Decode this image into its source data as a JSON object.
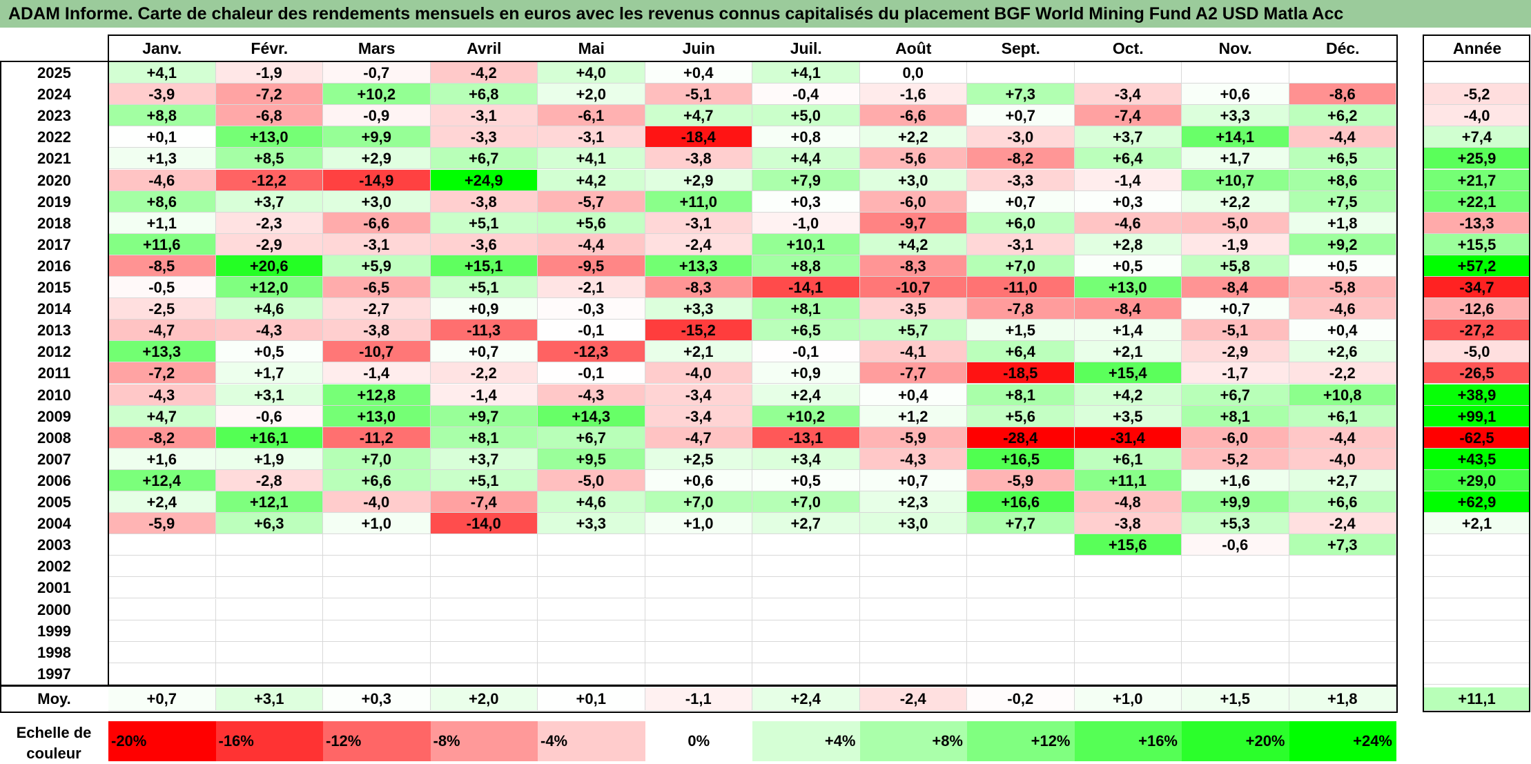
{
  "title": "ADAM Informe. Carte de chaleur des rendements mensuels en euros avec les revenus connus capitalisés du placement BGF World Mining Fund A2 USD Matla Acc",
  "chart_data": {
    "type": "heatmap",
    "months": [
      "Janv.",
      "Févr.",
      "Mars",
      "Avril",
      "Mai",
      "Juin",
      "Juil.",
      "Août",
      "Sept.",
      "Oct.",
      "Nov.",
      "Déc."
    ],
    "year_header": "Année",
    "avg_label": "Moy.",
    "rows": [
      {
        "year": "2025",
        "m": [
          "+4,1",
          "-1,9",
          "-0,7",
          "-4,2",
          "+4,0",
          "+0,4",
          "+4,1",
          "0,0",
          "",
          "",
          "",
          ""
        ],
        "y": ""
      },
      {
        "year": "2024",
        "m": [
          "-3,9",
          "-7,2",
          "+10,2",
          "+6,8",
          "+2,0",
          "-5,1",
          "-0,4",
          "-1,6",
          "+7,3",
          "-3,4",
          "+0,6",
          "-8,6"
        ],
        "y": "-5,2"
      },
      {
        "year": "2023",
        "m": [
          "+8,8",
          "-6,8",
          "-0,9",
          "-3,1",
          "-6,1",
          "+4,7",
          "+5,0",
          "-6,6",
          "+0,7",
          "-7,4",
          "+3,3",
          "+6,2"
        ],
        "y": "-4,0"
      },
      {
        "year": "2022",
        "m": [
          "+0,1",
          "+13,0",
          "+9,9",
          "-3,3",
          "-3,1",
          "-18,4",
          "+0,8",
          "+2,2",
          "-3,0",
          "+3,7",
          "+14,1",
          "-4,4"
        ],
        "y": "+7,4"
      },
      {
        "year": "2021",
        "m": [
          "+1,3",
          "+8,5",
          "+2,9",
          "+6,7",
          "+4,1",
          "-3,8",
          "+4,4",
          "-5,6",
          "-8,2",
          "+6,4",
          "+1,7",
          "+6,5"
        ],
        "y": "+25,9"
      },
      {
        "year": "2020",
        "m": [
          "-4,6",
          "-12,2",
          "-14,9",
          "+24,9",
          "+4,2",
          "+2,9",
          "+7,9",
          "+3,0",
          "-3,3",
          "-1,4",
          "+10,7",
          "+8,6"
        ],
        "y": "+21,7"
      },
      {
        "year": "2019",
        "m": [
          "+8,6",
          "+3,7",
          "+3,0",
          "-3,8",
          "-5,7",
          "+11,0",
          "+0,3",
          "-6,0",
          "+0,7",
          "+0,3",
          "+2,2",
          "+7,5"
        ],
        "y": "+22,1"
      },
      {
        "year": "2018",
        "m": [
          "+1,1",
          "-2,3",
          "-6,6",
          "+5,1",
          "+5,6",
          "-3,1",
          "-1,0",
          "-9,7",
          "+6,0",
          "-4,6",
          "-5,0",
          "+1,8"
        ],
        "y": "-13,3"
      },
      {
        "year": "2017",
        "m": [
          "+11,6",
          "-2,9",
          "-3,1",
          "-3,6",
          "-4,4",
          "-2,4",
          "+10,1",
          "+4,2",
          "-3,1",
          "+2,8",
          "-1,9",
          "+9,2"
        ],
        "y": "+15,5"
      },
      {
        "year": "2016",
        "m": [
          "-8,5",
          "+20,6",
          "+5,9",
          "+15,1",
          "-9,5",
          "+13,3",
          "+8,8",
          "-8,3",
          "+7,0",
          "+0,5",
          "+5,8",
          "+0,5"
        ],
        "y": "+57,2"
      },
      {
        "year": "2015",
        "m": [
          "-0,5",
          "+12,0",
          "-6,5",
          "+5,1",
          "-2,1",
          "-8,3",
          "-14,1",
          "-10,7",
          "-11,0",
          "+13,0",
          "-8,4",
          "-5,8"
        ],
        "y": "-34,7"
      },
      {
        "year": "2014",
        "m": [
          "-2,5",
          "+4,6",
          "-2,7",
          "+0,9",
          "-0,3",
          "+3,3",
          "+8,1",
          "-3,5",
          "-7,8",
          "-8,4",
          "+0,7",
          "-4,6"
        ],
        "y": "-12,6"
      },
      {
        "year": "2013",
        "m": [
          "-4,7",
          "-4,3",
          "-3,8",
          "-11,3",
          "-0,1",
          "-15,2",
          "+6,5",
          "+5,7",
          "+1,5",
          "+1,4",
          "-5,1",
          "+0,4"
        ],
        "y": "-27,2"
      },
      {
        "year": "2012",
        "m": [
          "+13,3",
          "+0,5",
          "-10,7",
          "+0,7",
          "-12,3",
          "+2,1",
          "-0,1",
          "-4,1",
          "+6,4",
          "+2,1",
          "-2,9",
          "+2,6"
        ],
        "y": "-5,0"
      },
      {
        "year": "2011",
        "m": [
          "-7,2",
          "+1,7",
          "-1,4",
          "-2,2",
          "-0,1",
          "-4,0",
          "+0,9",
          "-7,7",
          "-18,5",
          "+15,4",
          "-1,7",
          "-2,2"
        ],
        "y": "-26,5"
      },
      {
        "year": "2010",
        "m": [
          "-4,3",
          "+3,1",
          "+12,8",
          "-1,4",
          "-4,3",
          "-3,4",
          "+2,4",
          "+0,4",
          "+8,1",
          "+4,2",
          "+6,7",
          "+10,8"
        ],
        "y": "+38,9"
      },
      {
        "year": "2009",
        "m": [
          "+4,7",
          "-0,6",
          "+13,0",
          "+9,7",
          "+14,3",
          "-3,4",
          "+10,2",
          "+1,2",
          "+5,6",
          "+3,5",
          "+8,1",
          "+6,1"
        ],
        "y": "+99,1"
      },
      {
        "year": "2008",
        "m": [
          "-8,2",
          "+16,1",
          "-11,2",
          "+8,1",
          "+6,7",
          "-4,7",
          "-13,1",
          "-5,9",
          "-28,4",
          "-31,4",
          "-6,0",
          "-4,4"
        ],
        "y": "-62,5"
      },
      {
        "year": "2007",
        "m": [
          "+1,6",
          "+1,9",
          "+7,0",
          "+3,7",
          "+9,5",
          "+2,5",
          "+3,4",
          "-4,3",
          "+16,5",
          "+6,1",
          "-5,2",
          "-4,0"
        ],
        "y": "+43,5"
      },
      {
        "year": "2006",
        "m": [
          "+12,4",
          "-2,8",
          "+6,6",
          "+5,1",
          "-5,0",
          "+0,6",
          "+0,5",
          "+0,7",
          "-5,9",
          "+11,1",
          "+1,6",
          "+2,7"
        ],
        "y": "+29,0"
      },
      {
        "year": "2005",
        "m": [
          "+2,4",
          "+12,1",
          "-4,0",
          "-7,4",
          "+4,6",
          "+7,0",
          "+7,0",
          "+2,3",
          "+16,6",
          "-4,8",
          "+9,9",
          "+6,6"
        ],
        "y": "+62,9"
      },
      {
        "year": "2004",
        "m": [
          "-5,9",
          "+6,3",
          "+1,0",
          "-14,0",
          "+3,3",
          "+1,0",
          "+2,7",
          "+3,0",
          "+7,7",
          "-3,8",
          "+5,3",
          "-2,4"
        ],
        "y": "+2,1"
      },
      {
        "year": "2003",
        "m": [
          "",
          "",
          "",
          "",
          "",
          "",
          "",
          "",
          "",
          "+15,6",
          "-0,6",
          "+7,3"
        ],
        "y": ""
      },
      {
        "year": "2002",
        "m": [
          "",
          "",
          "",
          "",
          "",
          "",
          "",
          "",
          "",
          "",
          "",
          ""
        ],
        "y": ""
      },
      {
        "year": "2001",
        "m": [
          "",
          "",
          "",
          "",
          "",
          "",
          "",
          "",
          "",
          "",
          "",
          ""
        ],
        "y": ""
      },
      {
        "year": "2000",
        "m": [
          "",
          "",
          "",
          "",
          "",
          "",
          "",
          "",
          "",
          "",
          "",
          ""
        ],
        "y": ""
      },
      {
        "year": "1999",
        "m": [
          "",
          "",
          "",
          "",
          "",
          "",
          "",
          "",
          "",
          "",
          "",
          ""
        ],
        "y": ""
      },
      {
        "year": "1998",
        "m": [
          "",
          "",
          "",
          "",
          "",
          "",
          "",
          "",
          "",
          "",
          "",
          ""
        ],
        "y": ""
      },
      {
        "year": "1997",
        "m": [
          "",
          "",
          "",
          "",
          "",
          "",
          "",
          "",
          "",
          "",
          "",
          ""
        ],
        "y": ""
      }
    ],
    "averages": [
      "+0,7",
      "+3,1",
      "+0,3",
      "+2,0",
      "+0,1",
      "-1,1",
      "+2,4",
      "-2,4",
      "-0,2",
      "+1,0",
      "+1,5",
      "+1,8"
    ],
    "avg_year": "+11,1",
    "scale_label": "Echelle de couleur",
    "scale": [
      "-20%",
      "-16%",
      "-12%",
      "-8%",
      "-4%",
      "0%",
      "+4%",
      "+8%",
      "+12%",
      "+16%",
      "+20%",
      "+24%"
    ],
    "color_min": "#FF0000",
    "color_mid": "#FFFFFF",
    "color_max": "#00FF00"
  }
}
